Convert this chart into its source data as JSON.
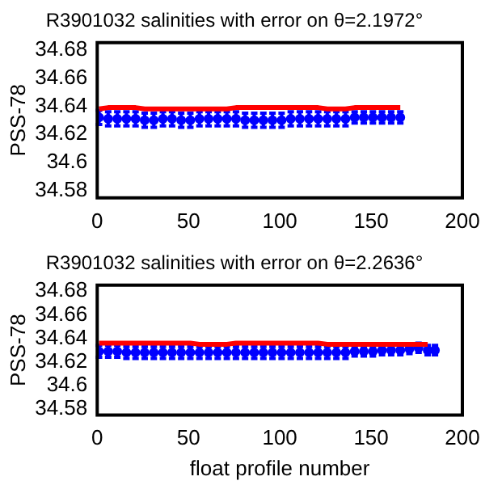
{
  "chart_data": [
    {
      "type": "line",
      "title": "R3901032 salinities with error on θ=2.1972°",
      "ylabel": "PSS-78",
      "xlim": [
        0,
        200
      ],
      "xticks": [
        0,
        50,
        100,
        150,
        200
      ],
      "ylim": [
        34.575,
        34.685
      ],
      "yticks": [
        34.58,
        34.6,
        34.62,
        34.64,
        34.66,
        34.68
      ],
      "grid": false,
      "legend": false,
      "tick_labels": true,
      "x": [
        1,
        6,
        11,
        16,
        21,
        26,
        31,
        36,
        41,
        46,
        51,
        56,
        61,
        66,
        71,
        76,
        81,
        86,
        91,
        96,
        101,
        106,
        111,
        116,
        121,
        126,
        131,
        136,
        141,
        146,
        151,
        156,
        161,
        166
      ],
      "series": [
        {
          "color": "#ff0000",
          "marker": "none",
          "values": [
            34.638,
            34.639,
            34.639,
            34.639,
            34.639,
            34.638,
            34.638,
            34.638,
            34.638,
            34.638,
            34.638,
            34.638,
            34.638,
            34.638,
            34.638,
            34.639,
            34.639,
            34.639,
            34.639,
            34.639,
            34.639,
            34.639,
            34.639,
            34.639,
            34.639,
            34.638,
            34.638,
            34.638,
            34.639,
            34.639,
            34.639,
            34.639,
            34.639,
            34.639
          ]
        },
        {
          "type": "scatter",
          "color": "#0000ff",
          "marker": "circle",
          "values": [
            34.632,
            34.631,
            34.631,
            34.631,
            34.631,
            34.63,
            34.63,
            34.631,
            34.631,
            34.63,
            34.63,
            34.631,
            34.631,
            34.631,
            34.631,
            34.631,
            34.63,
            34.63,
            34.63,
            34.63,
            34.63,
            34.631,
            34.631,
            34.631,
            34.631,
            34.631,
            34.631,
            34.631,
            34.632,
            34.632,
            34.632,
            34.632,
            34.632,
            34.632
          ],
          "errors": [
            0.005,
            0.005,
            0.005,
            0.005,
            0.005,
            0.005,
            0.005,
            0.005,
            0.005,
            0.005,
            0.005,
            0.005,
            0.005,
            0.005,
            0.005,
            0.005,
            0.005,
            0.005,
            0.005,
            0.005,
            0.005,
            0.005,
            0.005,
            0.005,
            0.005,
            0.005,
            0.005,
            0.005,
            0.004,
            0.004,
            0.004,
            0.004,
            0.004,
            0.004
          ]
        }
      ]
    },
    {
      "type": "line",
      "title": "R3901032 salinities with error on θ=2.2636°",
      "xlabel": "float profile number",
      "ylabel": "PSS-78",
      "xlim": [
        0,
        200
      ],
      "xticks": [
        0,
        50,
        100,
        150,
        200
      ],
      "ylim": [
        34.575,
        34.685
      ],
      "yticks": [
        34.58,
        34.6,
        34.62,
        34.64,
        34.66,
        34.68
      ],
      "grid": false,
      "legend": false,
      "tick_labels": true,
      "x": [
        1,
        6,
        11,
        16,
        21,
        26,
        31,
        36,
        41,
        46,
        51,
        56,
        61,
        66,
        71,
        76,
        81,
        86,
        91,
        96,
        101,
        106,
        111,
        116,
        121,
        126,
        131,
        136,
        141,
        146,
        151,
        156,
        161,
        166,
        171,
        176,
        181,
        185
      ],
      "series": [
        {
          "color": "#ff0000",
          "marker": "none",
          "values": [
            34.636,
            34.636,
            34.636,
            34.636,
            34.636,
            34.636,
            34.636,
            34.636,
            34.636,
            34.636,
            34.636,
            34.635,
            34.635,
            34.635,
            34.635,
            34.636,
            34.636,
            34.636,
            34.636,
            34.636,
            34.636,
            34.636,
            34.636,
            34.636,
            34.636,
            34.635,
            34.635,
            34.635,
            34.635,
            34.635,
            34.635,
            34.635,
            34.635,
            34.635,
            34.635,
            34.635,
            34.635,
            null
          ]
        },
        {
          "type": "scatter",
          "color": "#0000ff",
          "marker": "circle",
          "values": [
            34.629,
            34.629,
            34.629,
            34.628,
            34.628,
            34.628,
            34.628,
            34.628,
            34.628,
            34.628,
            34.628,
            34.628,
            34.628,
            34.628,
            34.628,
            34.628,
            34.628,
            34.628,
            34.628,
            34.628,
            34.628,
            34.628,
            34.628,
            34.628,
            34.628,
            34.628,
            34.628,
            34.628,
            34.629,
            34.629,
            34.629,
            34.63,
            34.63,
            34.63,
            34.631,
            34.632,
            34.63,
            34.63
          ],
          "errors": [
            0.005,
            0.005,
            0.005,
            0.005,
            0.005,
            0.005,
            0.005,
            0.005,
            0.005,
            0.005,
            0.005,
            0.005,
            0.005,
            0.005,
            0.005,
            0.005,
            0.005,
            0.005,
            0.005,
            0.005,
            0.005,
            0.005,
            0.005,
            0.005,
            0.005,
            0.005,
            0.005,
            0.005,
            0.004,
            0.004,
            0.004,
            0.004,
            0.004,
            0.004,
            0.004,
            0.004,
            0.004,
            0.004
          ]
        }
      ]
    }
  ]
}
